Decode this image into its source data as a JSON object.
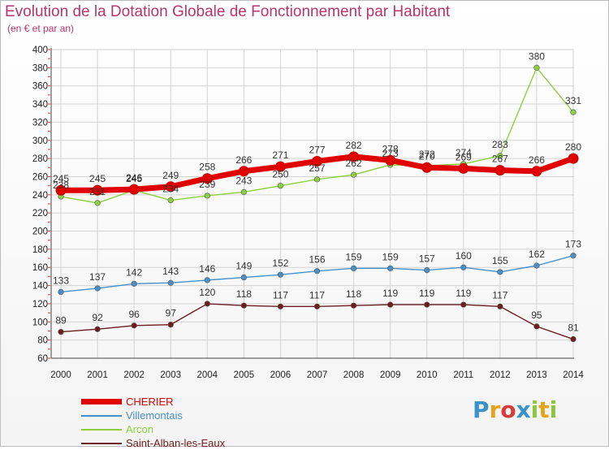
{
  "header": {
    "title": "Evolution de la Dotation Globale de Fonctionnement par Habitant",
    "subtitle": "(en € et par an)"
  },
  "colors": {
    "title": "#b9346c",
    "grid": "#d3d3d3",
    "CHERIER": "#e00000",
    "Villemontais": "#4a90c8",
    "Arcon": "#8ccf3f",
    "Saint-Alban-les-Eaux": "#6b1d21"
  },
  "logo": {
    "text": "Proxiti"
  },
  "chart_data": {
    "type": "line",
    "title": "Evolution de la Dotation Globale de Fonctionnement par Habitant",
    "subtitle": "(en € et par an)",
    "xlabel": "",
    "ylabel": "",
    "x": [
      "2000",
      "2001",
      "2002",
      "2003",
      "2004",
      "2005",
      "2006",
      "2007",
      "2008",
      "2009",
      "2010",
      "2011",
      "2012",
      "2013",
      "2014"
    ],
    "ylim": [
      60,
      400
    ],
    "yticks": [
      60,
      80,
      100,
      120,
      140,
      160,
      180,
      200,
      220,
      240,
      260,
      280,
      300,
      320,
      340,
      360,
      380,
      400
    ],
    "grid": true,
    "legend": "bottom-left",
    "series": [
      {
        "name": "CHERIER",
        "values": [
          245,
          245,
          246,
          249,
          258,
          266,
          271,
          277,
          282,
          278,
          270,
          269,
          267,
          266,
          280
        ]
      },
      {
        "name": "Villemontais",
        "values": [
          133,
          137,
          142,
          143,
          146,
          149,
          152,
          156,
          159,
          159,
          157,
          160,
          155,
          162,
          173
        ]
      },
      {
        "name": "Arcon",
        "values": [
          238,
          231,
          245,
          234,
          239,
          243,
          250,
          257,
          262,
          273,
          272,
          274,
          283,
          380,
          331
        ]
      },
      {
        "name": "Saint-Alban-les-Eaux",
        "values": [
          89,
          92,
          96,
          97,
          120,
          118,
          117,
          117,
          118,
          119,
          119,
          119,
          117,
          95,
          81
        ]
      }
    ]
  }
}
